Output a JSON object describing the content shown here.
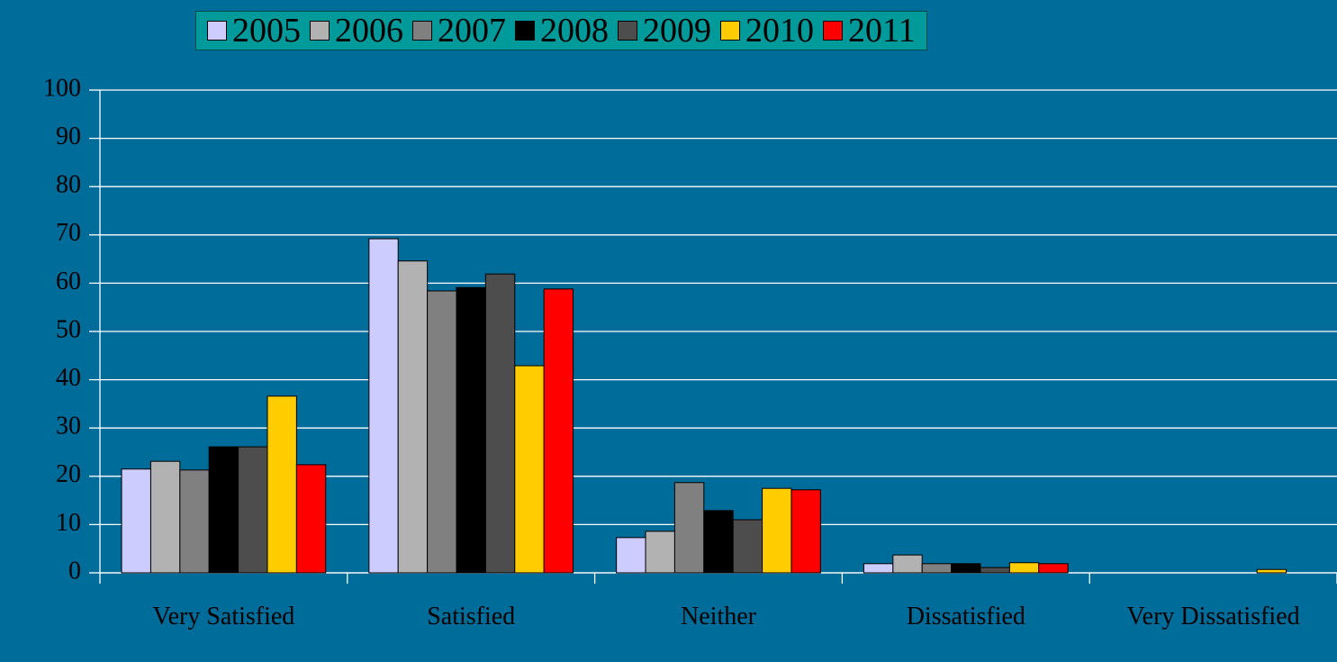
{
  "chart_data": {
    "type": "bar",
    "categories": [
      "Very Satisfied",
      "Satisfied",
      "Neither",
      "Dissatisfied",
      "Very Dissatisfied"
    ],
    "series": [
      {
        "name": "2005",
        "color": "#ccccff",
        "values": [
          21.5,
          69.2,
          7.3,
          1.9,
          0
        ]
      },
      {
        "name": "2006",
        "color": "#b2b2b2",
        "values": [
          23.1,
          64.6,
          8.6,
          3.7,
          0
        ]
      },
      {
        "name": "2007",
        "color": "#808080",
        "values": [
          21.3,
          58.4,
          18.7,
          1.9,
          0
        ]
      },
      {
        "name": "2008",
        "color": "#000000",
        "values": [
          26.1,
          59.1,
          12.9,
          1.9,
          0
        ]
      },
      {
        "name": "2009",
        "color": "#4d4d4d",
        "values": [
          26.1,
          61.9,
          11.0,
          1.1,
          0
        ]
      },
      {
        "name": "2010",
        "color": "#ffcc00",
        "values": [
          36.6,
          42.9,
          17.5,
          2.1,
          0.7
        ]
      },
      {
        "name": "2011",
        "color": "#ff0000",
        "values": [
          22.4,
          58.8,
          17.2,
          1.9,
          0
        ]
      }
    ],
    "ylim": [
      0,
      100
    ],
    "yticks": [
      0,
      10,
      20,
      30,
      40,
      50,
      60,
      70,
      80,
      90,
      100
    ],
    "grid": true,
    "legend": "top"
  }
}
